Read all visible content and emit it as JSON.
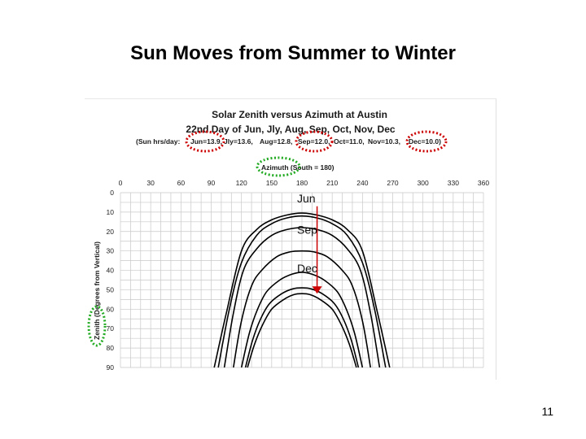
{
  "slide": {
    "title": "Sun Moves from Summer to Winter",
    "page_number": "11"
  },
  "colors": {
    "curve": "#000000",
    "grid": "#c8c8c8",
    "arrow": "#cc0000",
    "highlight_red": "#cc0000",
    "highlight_green": "#22aa22"
  },
  "chart_data": {
    "type": "line",
    "title": "Solar Zenith versus Azimuth at Austin",
    "subtitle": "22nd Day of Jun, Jly, Aug, Sep, Oct, Nov, Dec",
    "hours_prefix": "(Sun hrs/day:",
    "hours_items": [
      "Jun=13.9,",
      "Jly=13.6,",
      "Aug=12.8,",
      "Sep=12.0,",
      "Oct=11.0,",
      "Nov=10.3,",
      "Dec=10.0)"
    ],
    "xlabel": "Azimuth  (South = 180)",
    "ylabel": "Zenith  (Degrees from Vertical)",
    "xlim": [
      0,
      360
    ],
    "ylim": [
      0,
      90
    ],
    "y_inverted": true,
    "x_ticks": [
      0,
      30,
      60,
      90,
      120,
      150,
      180,
      210,
      240,
      270,
      300,
      330,
      360
    ],
    "y_ticks": [
      0,
      10,
      20,
      30,
      40,
      50,
      60,
      70,
      80,
      90
    ],
    "grid": true,
    "series": [
      {
        "name": "Jun",
        "x": [
          93,
          105,
          120,
          135,
          150,
          165,
          180,
          195,
          210,
          225,
          240,
          255,
          267
        ],
        "y": [
          90,
          62,
          30,
          19,
          14,
          11.5,
          10.5,
          11.5,
          14,
          19,
          30,
          62,
          90
        ]
      },
      {
        "name": "Jly",
        "x": [
          97,
          108,
          120,
          135,
          150,
          165,
          180,
          195,
          210,
          225,
          240,
          252,
          263
        ],
        "y": [
          90,
          60,
          36,
          22,
          16,
          13,
          12,
          13,
          16,
          22,
          36,
          60,
          90
        ]
      },
      {
        "name": "Aug",
        "x": [
          103,
          112,
          122,
          135,
          150,
          165,
          180,
          195,
          210,
          225,
          238,
          248,
          257
        ],
        "y": [
          90,
          62,
          40,
          29,
          22,
          19,
          18,
          19,
          22,
          29,
          40,
          62,
          90
        ]
      },
      {
        "name": "Sep",
        "x": [
          112,
          120,
          130,
          140,
          155,
          168,
          180,
          192,
          205,
          220,
          230,
          240,
          248
        ],
        "y": [
          90,
          66,
          48,
          40,
          33,
          30.5,
          30,
          30.5,
          33,
          40,
          48,
          66,
          90
        ]
      },
      {
        "name": "Oct",
        "x": [
          120,
          128,
          136,
          145,
          158,
          170,
          180,
          190,
          202,
          215,
          224,
          232,
          240
        ],
        "y": [
          90,
          72,
          60,
          51,
          45,
          42,
          41,
          42,
          45,
          51,
          60,
          72,
          90
        ]
      },
      {
        "name": "Nov",
        "x": [
          124,
          131,
          139,
          148,
          160,
          171,
          180,
          189,
          200,
          212,
          221,
          229,
          236
        ],
        "y": [
          90,
          76,
          65,
          57,
          52,
          49.5,
          49,
          49.5,
          52,
          57,
          65,
          76,
          90
        ]
      },
      {
        "name": "Dec",
        "x": [
          126,
          133,
          141,
          150,
          162,
          172,
          180,
          188,
          198,
          210,
          219,
          227,
          234
        ],
        "y": [
          90,
          78,
          68,
          60,
          55,
          52.5,
          52,
          52.5,
          55,
          60,
          68,
          78,
          90
        ]
      }
    ],
    "annotations": [
      {
        "text": "Jun",
        "x": 180,
        "y": 3
      },
      {
        "text": "Sep",
        "x": 180,
        "y": 19
      },
      {
        "text": "Dec",
        "x": 180,
        "y": 39
      }
    ],
    "arrow": {
      "x": 195,
      "y_from": 7,
      "y_to": 52
    }
  }
}
